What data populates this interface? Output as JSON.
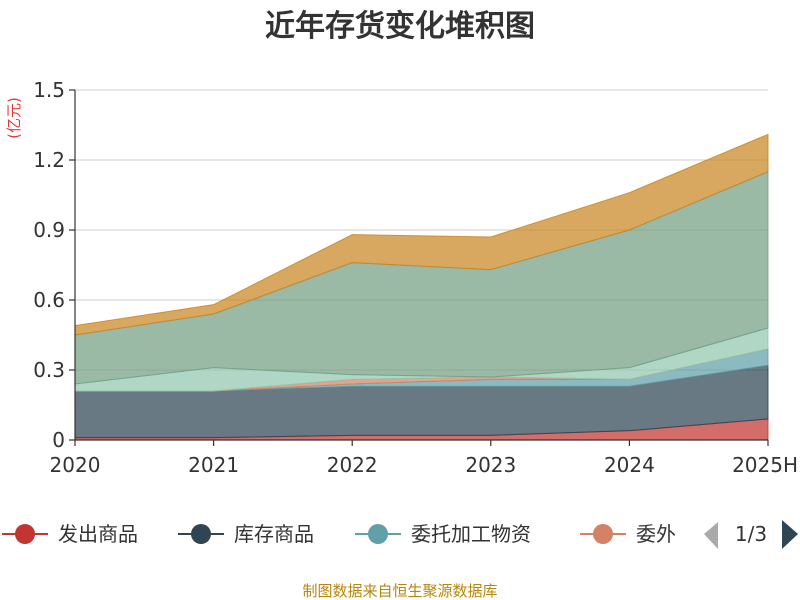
{
  "chart_data": {
    "type": "area",
    "stacked": true,
    "title": "近年存货变化堆积图",
    "unit_label": "(亿元)",
    "categories": [
      "2020",
      "2021",
      "2022",
      "2023",
      "2024",
      "2025H"
    ],
    "ylim": [
      0,
      1.5
    ],
    "y_ticks": [
      "0",
      "0.3",
      "0.6",
      "0.9",
      "1.2",
      "1.5"
    ],
    "y_tick_values": [
      0,
      0.3,
      0.6,
      0.9,
      1.2,
      1.5
    ],
    "grid": true,
    "series": [
      {
        "name": "发出商品",
        "color": "#c23531",
        "values": [
          0.01,
          0.01,
          0.02,
          0.02,
          0.04,
          0.09
        ]
      },
      {
        "name": "库存商品",
        "color": "#2f4554",
        "values": [
          0.2,
          0.2,
          0.21,
          0.21,
          0.19,
          0.23
        ]
      },
      {
        "name": "委托加工物资",
        "color": "#61a0a8",
        "values": [
          0.0,
          0.0,
          0.01,
          0.03,
          0.03,
          0.07
        ]
      },
      {
        "name": "委外",
        "color": "#d48265",
        "values": [
          0.0,
          0.0,
          0.02,
          0.01,
          0.0,
          0.0
        ]
      },
      {
        "name": "",
        "color": "#91c7ae",
        "values": [
          0.03,
          0.1,
          0.02,
          0.0,
          0.05,
          0.09
        ]
      },
      {
        "name": "",
        "color": "#749f83",
        "values": [
          0.21,
          0.23,
          0.48,
          0.46,
          0.59,
          0.67
        ]
      },
      {
        "name": "",
        "color": "#ca8622",
        "values": [
          0.04,
          0.04,
          0.12,
          0.14,
          0.16,
          0.16
        ]
      }
    ],
    "legend": {
      "placement": "bottom",
      "page": "1/3",
      "visible_items": [
        0,
        1,
        2,
        3
      ]
    }
  },
  "footer": {
    "source": "制图数据来自恒生聚源数据库",
    "source_color": "#b8860b"
  },
  "colors": {
    "axis": "#333333",
    "grid": "#cccccc",
    "unit": "#e53935",
    "pager_inactive": "#aaaaaa",
    "pager_active": "#2f4554"
  }
}
